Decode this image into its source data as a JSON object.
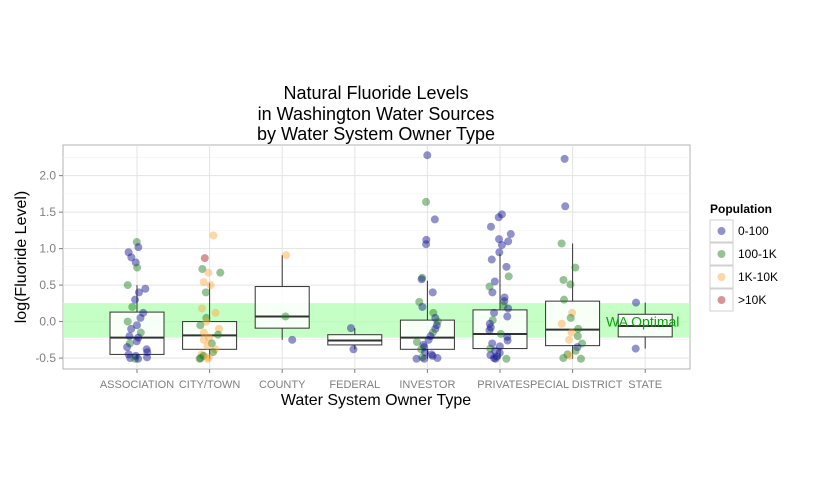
{
  "chart_data": {
    "type": "boxplot_jitter",
    "title": [
      "Natural Fluoride Levels",
      "in Washington Water Sources",
      "by Water System Owner Type"
    ],
    "xlabel": "Water System Owner Type",
    "ylabel": "log(Fluoride Level)",
    "ylim": [
      -0.65,
      2.42
    ],
    "yticks": [
      -0.5,
      0.0,
      0.5,
      1.0,
      1.5,
      2.0
    ],
    "ytick_labels": [
      "-0.5",
      "0.0",
      "0.5",
      "1.0",
      "1.5",
      "2.0"
    ],
    "grid": true,
    "categories": [
      "ASSOCIATION",
      "CITY/TOWN",
      "COUNTY",
      "FEDERAL",
      "INVESTOR",
      "PRIVATE",
      "SPECIAL DISTRICT",
      "STATE"
    ],
    "band": {
      "label": "WA Optimal",
      "ymin": -0.22,
      "ymax": 0.25,
      "color": "#b2ffb2"
    },
    "boxes": [
      {
        "category": "ASSOCIATION",
        "lower": -0.51,
        "q1": -0.45,
        "median": -0.22,
        "q3": 0.13,
        "upper": 0.5
      },
      {
        "category": "CITY/TOWN",
        "lower": -0.51,
        "q1": -0.38,
        "median": -0.19,
        "q3": 0.0,
        "upper": 0.53
      },
      {
        "category": "COUNTY",
        "lower": -0.25,
        "q1": -0.09,
        "median": 0.07,
        "q3": 0.48,
        "upper": 0.91
      },
      {
        "category": "FEDERAL",
        "lower": -0.38,
        "q1": -0.32,
        "median": -0.26,
        "q3": -0.18,
        "upper": -0.09
      },
      {
        "category": "INVESTOR",
        "lower": -0.51,
        "q1": -0.38,
        "median": -0.22,
        "q3": 0.02,
        "upper": 0.56
      },
      {
        "category": "PRIVATE",
        "lower": -0.51,
        "q1": -0.37,
        "median": -0.17,
        "q3": 0.16,
        "upper": 0.93
      },
      {
        "category": "SPECIAL DISTRICT",
        "lower": -0.51,
        "q1": -0.33,
        "median": -0.11,
        "q3": 0.28,
        "upper": 1.07
      },
      {
        "category": "STATE",
        "lower": -0.37,
        "q1": -0.21,
        "median": -0.06,
        "q3": 0.1,
        "upper": 0.26
      }
    ],
    "legend": {
      "title": "Population",
      "placement": "right",
      "entries": [
        {
          "label": "0-100",
          "color": "#0b0d8e"
        },
        {
          "label": "100-1K",
          "color": "#167a16"
        },
        {
          "label": "1K-10K",
          "color": "#ffa43a"
        },
        {
          "label": "&gt;10K",
          "color": "#a61414"
        }
      ]
    },
    "points": [
      {
        "category": "ASSOCIATION",
        "y": 1.09,
        "group": "100-1K"
      },
      {
        "category": "ASSOCIATION",
        "y": 1.02,
        "group": "0-100"
      },
      {
        "category": "ASSOCIATION",
        "y": 0.95,
        "group": "0-100"
      },
      {
        "category": "ASSOCIATION",
        "y": 0.88,
        "group": "0-100"
      },
      {
        "category": "ASSOCIATION",
        "y": 0.81,
        "group": "0-100"
      },
      {
        "category": "ASSOCIATION",
        "y": 0.74,
        "group": "100-1K"
      },
      {
        "category": "ASSOCIATION",
        "y": 0.5,
        "group": "100-1K"
      },
      {
        "category": "ASSOCIATION",
        "y": 0.45,
        "group": "0-100"
      },
      {
        "category": "ASSOCIATION",
        "y": 0.4,
        "group": "0-100"
      },
      {
        "category": "ASSOCIATION",
        "y": 0.3,
        "group": "0-100"
      },
      {
        "category": "ASSOCIATION",
        "y": 0.2,
        "group": "100-1K"
      },
      {
        "category": "ASSOCIATION",
        "y": 0.12,
        "group": "0-100"
      },
      {
        "category": "ASSOCIATION",
        "y": 0.05,
        "group": "0-100"
      },
      {
        "category": "ASSOCIATION",
        "y": 0.0,
        "group": "100-1K"
      },
      {
        "category": "ASSOCIATION",
        "y": -0.05,
        "group": "0-100"
      },
      {
        "category": "ASSOCIATION",
        "y": -0.1,
        "group": "0-100"
      },
      {
        "category": "ASSOCIATION",
        "y": -0.15,
        "group": "100-1K"
      },
      {
        "category": "ASSOCIATION",
        "y": -0.2,
        "group": "0-100"
      },
      {
        "category": "ASSOCIATION",
        "y": -0.22,
        "group": "0-100"
      },
      {
        "category": "ASSOCIATION",
        "y": -0.27,
        "group": "0-100"
      },
      {
        "category": "ASSOCIATION",
        "y": -0.3,
        "group": "100-1K"
      },
      {
        "category": "ASSOCIATION",
        "y": -0.35,
        "group": "0-100"
      },
      {
        "category": "ASSOCIATION",
        "y": -0.38,
        "group": "0-100"
      },
      {
        "category": "ASSOCIATION",
        "y": -0.42,
        "group": "0-100"
      },
      {
        "category": "ASSOCIATION",
        "y": -0.45,
        "group": "0-100"
      },
      {
        "category": "ASSOCIATION",
        "y": -0.47,
        "group": "0-100"
      },
      {
        "category": "ASSOCIATION",
        "y": -0.49,
        "group": "0-100"
      },
      {
        "category": "ASSOCIATION",
        "y": -0.5,
        "group": "0-100"
      },
      {
        "category": "ASSOCIATION",
        "y": -0.51,
        "group": "100-1K"
      },
      {
        "category": "ASSOCIATION",
        "y": -0.51,
        "group": "0-100"
      },
      {
        "category": "CITY/TOWN",
        "y": 1.18,
        "group": "1K-10K"
      },
      {
        "category": "CITY/TOWN",
        "y": 0.87,
        "group": "&gt;10K"
      },
      {
        "category": "CITY/TOWN",
        "y": 0.72,
        "group": "100-1K"
      },
      {
        "category": "CITY/TOWN",
        "y": 0.67,
        "group": "100-1K"
      },
      {
        "category": "CITY/TOWN",
        "y": 0.67,
        "group": "1K-10K"
      },
      {
        "category": "CITY/TOWN",
        "y": 0.54,
        "group": "1K-10K"
      },
      {
        "category": "CITY/TOWN",
        "y": 0.5,
        "group": "1K-10K"
      },
      {
        "category": "CITY/TOWN",
        "y": 0.4,
        "group": "100-1K"
      },
      {
        "category": "CITY/TOWN",
        "y": 0.18,
        "group": "1K-10K"
      },
      {
        "category": "CITY/TOWN",
        "y": 0.12,
        "group": "1K-10K"
      },
      {
        "category": "CITY/TOWN",
        "y": 0.05,
        "group": "100-1K"
      },
      {
        "category": "CITY/TOWN",
        "y": 0.0,
        "group": "1K-10K"
      },
      {
        "category": "CITY/TOWN",
        "y": -0.05,
        "group": "100-1K"
      },
      {
        "category": "CITY/TOWN",
        "y": -0.1,
        "group": "1K-10K"
      },
      {
        "category": "CITY/TOWN",
        "y": -0.15,
        "group": "1K-10K"
      },
      {
        "category": "CITY/TOWN",
        "y": -0.18,
        "group": "100-1K"
      },
      {
        "category": "CITY/TOWN",
        "y": -0.22,
        "group": "1K-10K"
      },
      {
        "category": "CITY/TOWN",
        "y": -0.25,
        "group": "1K-10K"
      },
      {
        "category": "CITY/TOWN",
        "y": -0.3,
        "group": "100-1K"
      },
      {
        "category": "CITY/TOWN",
        "y": -0.33,
        "group": "1K-10K"
      },
      {
        "category": "CITY/TOWN",
        "y": -0.38,
        "group": "1K-10K"
      },
      {
        "category": "CITY/TOWN",
        "y": -0.42,
        "group": "100-1K"
      },
      {
        "category": "CITY/TOWN",
        "y": -0.45,
        "group": "1K-10K"
      },
      {
        "category": "CITY/TOWN",
        "y": -0.47,
        "group": "100-1K"
      },
      {
        "category": "CITY/TOWN",
        "y": -0.49,
        "group": "1K-10K"
      },
      {
        "category": "CITY/TOWN",
        "y": -0.5,
        "group": "100-1K"
      },
      {
        "category": "CITY/TOWN",
        "y": -0.51,
        "group": "100-1K"
      },
      {
        "category": "CITY/TOWN",
        "y": -0.51,
        "group": "1K-10K"
      },
      {
        "category": "COUNTY",
        "y": 0.91,
        "group": "1K-10K"
      },
      {
        "category": "COUNTY",
        "y": 0.07,
        "group": "100-1K"
      },
      {
        "category": "COUNTY",
        "y": -0.25,
        "group": "0-100"
      },
      {
        "category": "FEDERAL",
        "y": -0.09,
        "group": "0-100"
      },
      {
        "category": "FEDERAL",
        "y": -0.38,
        "group": "0-100"
      },
      {
        "category": "INVESTOR",
        "y": 2.28,
        "group": "0-100"
      },
      {
        "category": "INVESTOR",
        "y": 1.64,
        "group": "100-1K"
      },
      {
        "category": "INVESTOR",
        "y": 1.4,
        "group": "0-100"
      },
      {
        "category": "INVESTOR",
        "y": 1.12,
        "group": "0-100"
      },
      {
        "category": "INVESTOR",
        "y": 1.06,
        "group": "0-100"
      },
      {
        "category": "INVESTOR",
        "y": 0.6,
        "group": "100-1K"
      },
      {
        "category": "INVESTOR",
        "y": 0.58,
        "group": "0-100"
      },
      {
        "category": "INVESTOR",
        "y": 0.4,
        "group": "0-100"
      },
      {
        "category": "INVESTOR",
        "y": 0.27,
        "group": "100-1K"
      },
      {
        "category": "INVESTOR",
        "y": 0.2,
        "group": "0-100"
      },
      {
        "category": "INVESTOR",
        "y": 0.12,
        "group": "100-1K"
      },
      {
        "category": "INVESTOR",
        "y": 0.05,
        "group": "0-100"
      },
      {
        "category": "INVESTOR",
        "y": 0.0,
        "group": "100-1K"
      },
      {
        "category": "INVESTOR",
        "y": -0.05,
        "group": "0-100"
      },
      {
        "category": "INVESTOR",
        "y": -0.1,
        "group": "0-100"
      },
      {
        "category": "INVESTOR",
        "y": -0.15,
        "group": "100-1K"
      },
      {
        "category": "INVESTOR",
        "y": -0.2,
        "group": "0-100"
      },
      {
        "category": "INVESTOR",
        "y": -0.25,
        "group": "0-100"
      },
      {
        "category": "INVESTOR",
        "y": -0.28,
        "group": "100-1K"
      },
      {
        "category": "INVESTOR",
        "y": -0.32,
        "group": "0-100"
      },
      {
        "category": "INVESTOR",
        "y": -0.35,
        "group": "0-100"
      },
      {
        "category": "INVESTOR",
        "y": -0.38,
        "group": "100-1K"
      },
      {
        "category": "INVESTOR",
        "y": -0.42,
        "group": "0-100"
      },
      {
        "category": "INVESTOR",
        "y": -0.45,
        "group": "0-100"
      },
      {
        "category": "INVESTOR",
        "y": -0.47,
        "group": "0-100"
      },
      {
        "category": "INVESTOR",
        "y": -0.49,
        "group": "100-1K"
      },
      {
        "category": "INVESTOR",
        "y": -0.5,
        "group": "0-100"
      },
      {
        "category": "INVESTOR",
        "y": -0.51,
        "group": "0-100"
      },
      {
        "category": "INVESTOR",
        "y": -0.51,
        "group": "0-100"
      },
      {
        "category": "PRIVATE",
        "y": 1.47,
        "group": "0-100"
      },
      {
        "category": "PRIVATE",
        "y": 1.43,
        "group": "0-100"
      },
      {
        "category": "PRIVATE",
        "y": 1.3,
        "group": "0-100"
      },
      {
        "category": "PRIVATE",
        "y": 1.2,
        "group": "0-100"
      },
      {
        "category": "PRIVATE",
        "y": 1.13,
        "group": "0-100"
      },
      {
        "category": "PRIVATE",
        "y": 1.1,
        "group": "0-100"
      },
      {
        "category": "PRIVATE",
        "y": 1.05,
        "group": "0-100"
      },
      {
        "category": "PRIVATE",
        "y": 0.95,
        "group": "0-100"
      },
      {
        "category": "PRIVATE",
        "y": 0.85,
        "group": "0-100"
      },
      {
        "category": "PRIVATE",
        "y": 0.75,
        "group": "0-100"
      },
      {
        "category": "PRIVATE",
        "y": 0.62,
        "group": "100-1K"
      },
      {
        "category": "PRIVATE",
        "y": 0.55,
        "group": "0-100"
      },
      {
        "category": "PRIVATE",
        "y": 0.48,
        "group": "100-1K"
      },
      {
        "category": "PRIVATE",
        "y": 0.4,
        "group": "0-100"
      },
      {
        "category": "PRIVATE",
        "y": 0.33,
        "group": "0-100"
      },
      {
        "category": "PRIVATE",
        "y": 0.28,
        "group": "0-100"
      },
      {
        "category": "PRIVATE",
        "y": 0.22,
        "group": "100-1K"
      },
      {
        "category": "PRIVATE",
        "y": 0.18,
        "group": "0-100"
      },
      {
        "category": "PRIVATE",
        "y": 0.12,
        "group": "0-100"
      },
      {
        "category": "PRIVATE",
        "y": 0.07,
        "group": "0-100"
      },
      {
        "category": "PRIVATE",
        "y": 0.02,
        "group": "100-1K"
      },
      {
        "category": "PRIVATE",
        "y": -0.03,
        "group": "0-100"
      },
      {
        "category": "PRIVATE",
        "y": -0.08,
        "group": "0-100"
      },
      {
        "category": "PRIVATE",
        "y": -0.12,
        "group": "0-100"
      },
      {
        "category": "PRIVATE",
        "y": -0.17,
        "group": "100-1K"
      },
      {
        "category": "PRIVATE",
        "y": -0.21,
        "group": "0-100"
      },
      {
        "category": "PRIVATE",
        "y": -0.26,
        "group": "0-100"
      },
      {
        "category": "PRIVATE",
        "y": -0.3,
        "group": "0-100"
      },
      {
        "category": "PRIVATE",
        "y": -0.34,
        "group": "0-100"
      },
      {
        "category": "PRIVATE",
        "y": -0.37,
        "group": "100-1K"
      },
      {
        "category": "PRIVATE",
        "y": -0.4,
        "group": "0-100"
      },
      {
        "category": "PRIVATE",
        "y": -0.43,
        "group": "0-100"
      },
      {
        "category": "PRIVATE",
        "y": -0.46,
        "group": "0-100"
      },
      {
        "category": "PRIVATE",
        "y": -0.48,
        "group": "0-100"
      },
      {
        "category": "PRIVATE",
        "y": -0.5,
        "group": "0-100"
      },
      {
        "category": "PRIVATE",
        "y": -0.51,
        "group": "0-100"
      },
      {
        "category": "PRIVATE",
        "y": -0.51,
        "group": "100-1K"
      },
      {
        "category": "SPECIAL DISTRICT",
        "y": 2.23,
        "group": "0-100"
      },
      {
        "category": "SPECIAL DISTRICT",
        "y": 1.58,
        "group": "0-100"
      },
      {
        "category": "SPECIAL DISTRICT",
        "y": 1.07,
        "group": "100-1K"
      },
      {
        "category": "SPECIAL DISTRICT",
        "y": 0.74,
        "group": "100-1K"
      },
      {
        "category": "SPECIAL DISTRICT",
        "y": 0.57,
        "group": "100-1K"
      },
      {
        "category": "SPECIAL DISTRICT",
        "y": 0.51,
        "group": "100-1K"
      },
      {
        "category": "SPECIAL DISTRICT",
        "y": 0.3,
        "group": "100-1K"
      },
      {
        "category": "SPECIAL DISTRICT",
        "y": 0.12,
        "group": "1K-10K"
      },
      {
        "category": "SPECIAL DISTRICT",
        "y": 0.05,
        "group": "100-1K"
      },
      {
        "category": "SPECIAL DISTRICT",
        "y": -0.03,
        "group": "1K-10K"
      },
      {
        "category": "SPECIAL DISTRICT",
        "y": -0.1,
        "group": "100-1K"
      },
      {
        "category": "SPECIAL DISTRICT",
        "y": -0.15,
        "group": "1K-10K"
      },
      {
        "category": "SPECIAL DISTRICT",
        "y": -0.2,
        "group": "100-1K"
      },
      {
        "category": "SPECIAL DISTRICT",
        "y": -0.25,
        "group": "1K-10K"
      },
      {
        "category": "SPECIAL DISTRICT",
        "y": -0.3,
        "group": "100-1K"
      },
      {
        "category": "SPECIAL DISTRICT",
        "y": -0.35,
        "group": "0-100"
      },
      {
        "category": "SPECIAL DISTRICT",
        "y": -0.4,
        "group": "100-1K"
      },
      {
        "category": "SPECIAL DISTRICT",
        "y": -0.45,
        "group": "100-1K"
      },
      {
        "category": "SPECIAL DISTRICT",
        "y": -0.47,
        "group": "1K-10K"
      },
      {
        "category": "SPECIAL DISTRICT",
        "y": -0.5,
        "group": "100-1K"
      },
      {
        "category": "SPECIAL DISTRICT",
        "y": -0.51,
        "group": "100-1K"
      },
      {
        "category": "STATE",
        "y": 0.26,
        "group": "0-100"
      },
      {
        "category": "STATE",
        "y": -0.37,
        "group": "0-100"
      }
    ]
  }
}
